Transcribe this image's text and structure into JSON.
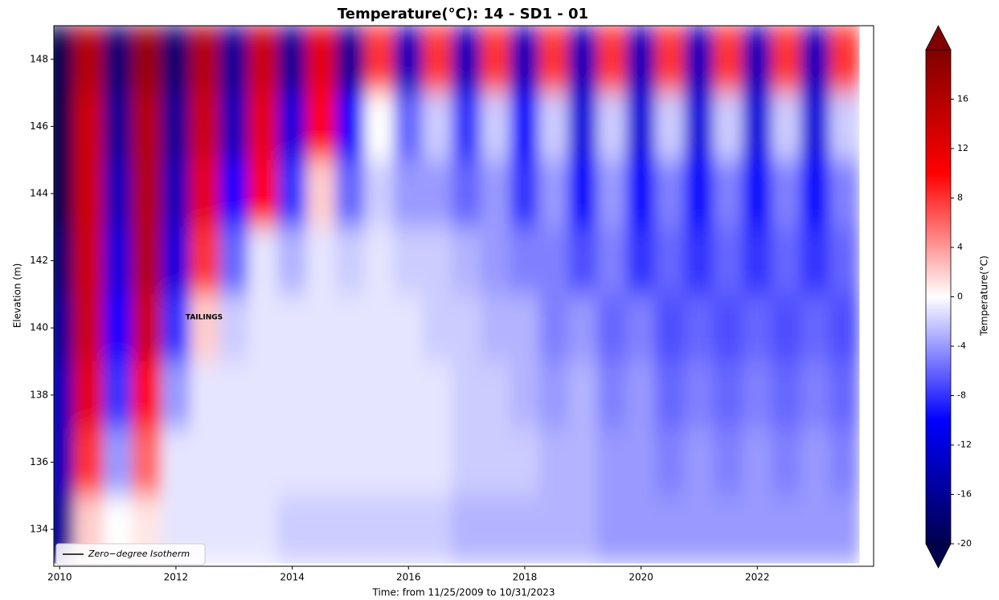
{
  "chart_data": {
    "type": "contour",
    "title": "Temperature(°C): 14 - SD1 - 01",
    "xlabel": "Time: from 11/25/2009 to 10/31/2023",
    "ylabel": "Elevation (m)",
    "colorbar_label": "Temperature(°C)",
    "annotation": "TAILINGS",
    "legend_label": "Zero−degree Isotherm",
    "colormap": "seismic",
    "xlim": [
      2009.9,
      2024.0
    ],
    "xticks": [
      2010,
      2012,
      2014,
      2016,
      2018,
      2020,
      2022
    ],
    "ylim": [
      132.9,
      149.0
    ],
    "yticks": [
      134,
      136,
      138,
      140,
      142,
      144,
      146,
      148
    ],
    "clim": [
      -20,
      20
    ],
    "cticks": [
      -20,
      -16,
      -12,
      -8,
      -4,
      0,
      4,
      8,
      12,
      16
    ],
    "x": [
      2010.0,
      2010.5,
      2011.0,
      2011.5,
      2012.0,
      2012.5,
      2013.0,
      2013.5,
      2014.0,
      2014.5,
      2015.0,
      2015.5,
      2016.0,
      2016.5,
      2017.0,
      2017.5,
      2018.0,
      2018.5,
      2019.0,
      2019.5,
      2020.0,
      2020.5,
      2021.0,
      2021.5,
      2022.0,
      2022.5,
      2023.0,
      2023.5
    ],
    "y": [
      148,
      146,
      144,
      142,
      140,
      138,
      136,
      134
    ],
    "z": [
      [
        -20,
        16,
        -18,
        18,
        -18,
        16,
        -16,
        14,
        -16,
        12,
        -16,
        8,
        -14,
        8,
        -14,
        8,
        -14,
        8,
        -14,
        8,
        -14,
        8,
        -14,
        8,
        -14,
        8,
        -14,
        8
      ],
      [
        -20,
        14,
        -16,
        16,
        -16,
        14,
        -14,
        12,
        -12,
        10,
        -10,
        0,
        -6,
        -2,
        -8,
        -2,
        -10,
        -2,
        -12,
        -2,
        -12,
        -2,
        -12,
        -2,
        -12,
        -2,
        -12,
        -2
      ],
      [
        -20,
        14,
        -14,
        16,
        -14,
        12,
        -10,
        10,
        -8,
        2,
        -6,
        -2,
        -4,
        -4,
        -6,
        -4,
        -8,
        -4,
        -10,
        -4,
        -10,
        -5,
        -10,
        -5,
        -10,
        -5,
        -10,
        -5
      ],
      [
        -18,
        14,
        -12,
        16,
        -12,
        8,
        -6,
        -1,
        -3,
        -1,
        -2,
        -1,
        -2,
        -2,
        -3,
        -4,
        -5,
        -5,
        -7,
        -5,
        -8,
        -6,
        -8,
        -6,
        -8,
        -6,
        -8,
        -6
      ],
      [
        -16,
        14,
        -10,
        14,
        -8,
        2,
        -2,
        -1,
        -1,
        -1,
        -1,
        -1,
        -1,
        -2,
        -2,
        -3,
        -3,
        -5,
        -4,
        -6,
        -5,
        -7,
        -6,
        -7,
        -6,
        -7,
        -6,
        -7
      ],
      [
        -14,
        12,
        -8,
        10,
        -4,
        -1,
        -1,
        -1,
        -1,
        -1,
        -1,
        -1,
        -1,
        -1,
        -2,
        -2,
        -3,
        -4,
        -3,
        -5,
        -4,
        -6,
        -5,
        -6,
        -5,
        -6,
        -5,
        -6
      ],
      [
        -14,
        8,
        -4,
        6,
        -1,
        -1,
        -1,
        -1,
        -1,
        -1,
        -1,
        -1,
        -1,
        -1,
        -2,
        -2,
        -2,
        -3,
        -3,
        -4,
        -4,
        -5,
        -4,
        -5,
        -4,
        -5,
        -4,
        -5
      ],
      [
        -16,
        2,
        0,
        1,
        -1,
        -1,
        -1,
        -1,
        -2,
        -2,
        -2,
        -2,
        -2,
        -2,
        -3,
        -3,
        -3,
        -3,
        -3,
        -4,
        -4,
        -4,
        -4,
        -4,
        -4,
        -4,
        -4,
        -4
      ]
    ]
  }
}
